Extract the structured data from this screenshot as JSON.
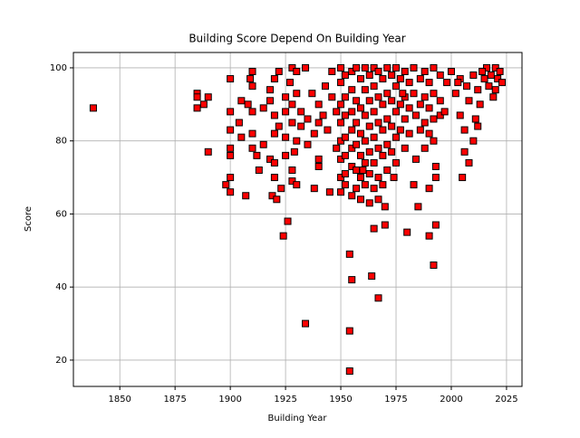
{
  "chart_data": {
    "type": "scatter",
    "title": "Building Score Depend On Building Year",
    "x_label": "Building Year",
    "y_label": "Score",
    "color": "#ff0000",
    "edge_color": "#000000",
    "marker": "square",
    "grid": true,
    "xlim": [
      1829,
      2032
    ],
    "ylim": [
      12.8,
      104.2
    ],
    "xticks": [
      1850,
      1875,
      1900,
      1925,
      1950,
      1975,
      2000,
      2025
    ],
    "yticks": [
      20,
      40,
      60,
      80,
      100
    ],
    "x": [
      1838,
      1885,
      1885,
      1885,
      1888,
      1890,
      1890,
      1898,
      1900,
      1900,
      1900,
      1900,
      1900,
      1900,
      1900,
      1904,
      1905,
      1905,
      1907,
      1908,
      1909,
      1910,
      1910,
      1910,
      1910,
      1910,
      1912,
      1913,
      1915,
      1915,
      1918,
      1918,
      1918,
      1919,
      1920,
      1920,
      1920,
      1920,
      1920,
      1921,
      1922,
      1922,
      1923,
      1924,
      1925,
      1925,
      1925,
      1925,
      1926,
      1927,
      1928,
      1928,
      1928,
      1928,
      1928,
      1929,
      1930,
      1930,
      1930,
      1930,
      1932,
      1932,
      1934,
      1934,
      1935,
      1935,
      1937,
      1938,
      1938,
      1940,
      1940,
      1940,
      1940,
      1942,
      1943,
      1944,
      1945,
      1946,
      1946,
      1948,
      1948,
      1950,
      1950,
      1950,
      1950,
      1950,
      1950,
      1950,
      1950,
      1952,
      1952,
      1952,
      1952,
      1952,
      1952,
      1952,
      1954,
      1954,
      1954,
      1955,
      1955,
      1955,
      1955,
      1955,
      1955,
      1955,
      1955,
      1957,
      1957,
      1957,
      1957,
      1957,
      1957,
      1959,
      1959,
      1959,
      1959,
      1959,
      1959,
      1961,
      1961,
      1961,
      1961,
      1961,
      1961,
      1963,
      1963,
      1963,
      1963,
      1963,
      1963,
      1964,
      1965,
      1965,
      1965,
      1965,
      1965,
      1965,
      1965,
      1967,
      1967,
      1967,
      1967,
      1967,
      1967,
      1967,
      1969,
      1969,
      1969,
      1969,
      1969,
      1970,
      1970,
      1971,
      1971,
      1971,
      1971,
      1971,
      1973,
      1973,
      1973,
      1973,
      1975,
      1975,
      1975,
      1975,
      1975,
      1977,
      1977,
      1977,
      1979,
      1979,
      1979,
      1979,
      1980,
      1981,
      1981,
      1981,
      1983,
      1983,
      1983,
      1984,
      1984,
      1985,
      1986,
      1986,
      1986,
      1988,
      1988,
      1988,
      1988,
      1990,
      1990,
      1990,
      1990,
      1990,
      1992,
      1992,
      1992,
      1992,
      1992,
      1993,
      1993,
      1993,
      1995,
      1995,
      1995,
      1998,
      2000,
      2002,
      2004,
      2004,
      2005,
      2006,
      2006,
      2007,
      2008,
      2008,
      2010,
      2010,
      2011,
      2012,
      2012,
      2013,
      2015,
      2016,
      2017,
      2018,
      2019,
      2020,
      2021,
      2022,
      2023,
      2020,
      2014,
      2003,
      1997,
      1978,
      1974,
      1960
    ],
    "values": [
      89,
      93,
      92,
      89,
      90,
      92,
      77,
      68,
      97,
      88,
      83,
      78,
      76,
      70,
      66,
      85,
      91,
      81,
      65,
      90,
      97,
      99,
      95,
      88,
      82,
      78,
      76,
      72,
      89,
      79,
      94,
      91,
      75,
      65,
      97,
      87,
      82,
      74,
      70,
      64,
      99,
      84,
      67,
      54,
      92,
      88,
      81,
      76,
      58,
      96,
      100,
      90,
      85,
      72,
      69,
      77,
      99,
      93,
      80,
      68,
      88,
      84,
      100,
      30,
      86,
      79,
      93,
      82,
      67,
      90,
      85,
      75,
      73,
      87,
      95,
      83,
      66,
      99,
      92,
      88,
      78,
      100,
      96,
      90,
      85,
      80,
      75,
      70,
      66,
      98,
      92,
      87,
      81,
      76,
      71,
      68,
      49,
      28,
      17,
      42,
      99,
      94,
      88,
      83,
      78,
      73,
      65,
      100,
      91,
      85,
      79,
      72,
      67,
      97,
      89,
      82,
      76,
      70,
      64,
      100,
      94,
      87,
      80,
      74,
      68,
      98,
      91,
      84,
      77,
      71,
      63,
      43,
      56,
      100,
      95,
      88,
      81,
      74,
      67,
      37,
      99,
      92,
      85,
      78,
      70,
      64,
      97,
      90,
      83,
      76,
      68,
      57,
      62,
      100,
      93,
      86,
      79,
      72,
      98,
      91,
      84,
      77,
      100,
      95,
      88,
      81,
      74,
      97,
      90,
      83,
      99,
      92,
      86,
      78,
      55,
      96,
      89,
      82,
      100,
      93,
      68,
      87,
      75,
      62,
      97,
      90,
      83,
      99,
      92,
      85,
      78,
      96,
      89,
      82,
      54,
      67,
      100,
      93,
      86,
      80,
      46,
      57,
      73,
      70,
      98,
      91,
      87,
      96,
      99,
      93,
      97,
      87,
      70,
      83,
      77,
      95,
      74,
      91,
      98,
      80,
      86,
      84,
      94,
      90,
      97,
      100,
      95,
      98,
      92,
      100,
      97,
      99,
      96,
      94,
      99,
      96,
      88,
      93,
      70,
      72
    ]
  }
}
